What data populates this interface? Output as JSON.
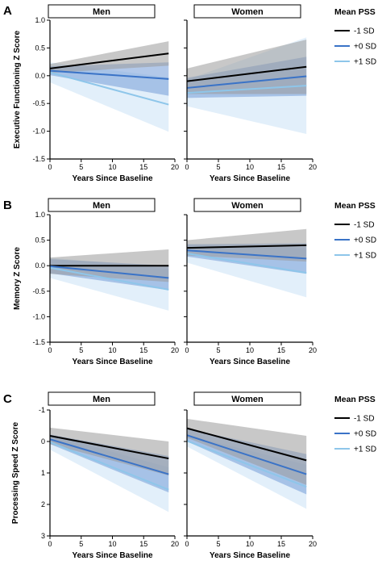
{
  "chart_data": [
    {
      "type": "line",
      "panel_letter": "A",
      "ylabel": "Executive Functioning Z Score",
      "xlabel": "Years Since Baseline",
      "xlim": [
        0,
        20
      ],
      "xticks": [
        0,
        5,
        10,
        15,
        20
      ],
      "ylim": [
        -1.5,
        1.0
      ],
      "yticks": [
        -1.5,
        -1.0,
        -0.5,
        0.0,
        0.5,
        1.0
      ],
      "yreversed": false,
      "grid": false,
      "legend_title": "Mean PSS",
      "legend_position": "right",
      "facets": [
        {
          "title": "Men",
          "series": [
            {
              "name": "-1 SD",
              "color": "#000000",
              "band_color": "#9a9a9a",
              "x": [
                0,
                19
              ],
              "y": [
                0.13,
                0.4
              ],
              "lower": [
                0.05,
                0.18
              ],
              "upper": [
                0.21,
                0.62
              ]
            },
            {
              "name": "+0 SD",
              "color": "#3a73c7",
              "band_color": "#7fa3da",
              "x": [
                0,
                19
              ],
              "y": [
                0.09,
                -0.06
              ],
              "lower": [
                0.01,
                -0.36
              ],
              "upper": [
                0.17,
                0.24
              ]
            },
            {
              "name": "+1 SD",
              "color": "#8ec6ea",
              "band_color": "#cfe5f6",
              "x": [
                0,
                19
              ],
              "y": [
                0.06,
                -0.52
              ],
              "lower": [
                -0.12,
                -1.01
              ],
              "upper": [
                0.24,
                -0.03
              ]
            }
          ]
        },
        {
          "title": "Women",
          "series": [
            {
              "name": "-1 SD",
              "color": "#000000",
              "band_color": "#9a9a9a",
              "x": [
                0,
                19
              ],
              "y": [
                -0.1,
                0.16
              ],
              "lower": [
                -0.33,
                -0.33
              ],
              "upper": [
                0.13,
                0.65
              ]
            },
            {
              "name": "+0 SD",
              "color": "#3a73c7",
              "band_color": "#7fa3da",
              "x": [
                0,
                19
              ],
              "y": [
                -0.22,
                -0.01
              ],
              "lower": [
                -0.4,
                -0.36
              ],
              "upper": [
                -0.04,
                0.34
              ]
            },
            {
              "name": "+1 SD",
              "color": "#8ec6ea",
              "band_color": "#cfe5f6",
              "x": [
                0,
                19
              ],
              "y": [
                -0.31,
                -0.18
              ],
              "lower": [
                -0.55,
                -1.05
              ],
              "upper": [
                -0.07,
                0.69
              ]
            }
          ]
        }
      ]
    },
    {
      "type": "line",
      "panel_letter": "B",
      "ylabel": "Memory Z Score",
      "xlabel": "Years Since Baseline",
      "xlim": [
        0,
        20
      ],
      "xticks": [
        0,
        5,
        10,
        15,
        20
      ],
      "ylim": [
        -1.5,
        1.0
      ],
      "yticks": [
        -1.5,
        -1.0,
        -0.5,
        0.0,
        0.5,
        1.0
      ],
      "yreversed": false,
      "grid": false,
      "legend_title": "Mean PSS",
      "legend_position": "right",
      "facets": [
        {
          "title": "Men",
          "series": [
            {
              "name": "-1 SD",
              "color": "#000000",
              "band_color": "#9a9a9a",
              "x": [
                0,
                19
              ],
              "y": [
                0.0,
                0.0
              ],
              "lower": [
                -0.16,
                -0.32
              ],
              "upper": [
                0.16,
                0.32
              ]
            },
            {
              "name": "+0 SD",
              "color": "#3a73c7",
              "band_color": "#7fa3da",
              "x": [
                0,
                19
              ],
              "y": [
                -0.01,
                -0.24
              ],
              "lower": [
                -0.15,
                -0.48
              ],
              "upper": [
                0.13,
                0.0
              ]
            },
            {
              "name": "+1 SD",
              "color": "#8ec6ea",
              "band_color": "#cfe5f6",
              "x": [
                0,
                19
              ],
              "y": [
                -0.04,
                -0.47
              ],
              "lower": [
                -0.24,
                -0.88
              ],
              "upper": [
                0.16,
                -0.06
              ]
            }
          ]
        },
        {
          "title": "Women",
          "series": [
            {
              "name": "-1 SD",
              "color": "#000000",
              "band_color": "#9a9a9a",
              "x": [
                0,
                19
              ],
              "y": [
                0.35,
                0.4
              ],
              "lower": [
                0.2,
                0.08
              ],
              "upper": [
                0.5,
                0.72
              ]
            },
            {
              "name": "+0 SD",
              "color": "#3a73c7",
              "band_color": "#7fa3da",
              "x": [
                0,
                19
              ],
              "y": [
                0.3,
                0.14
              ],
              "lower": [
                0.18,
                -0.16
              ],
              "upper": [
                0.42,
                0.44
              ]
            },
            {
              "name": "+1 SD",
              "color": "#8ec6ea",
              "band_color": "#cfe5f6",
              "x": [
                0,
                19
              ],
              "y": [
                0.24,
                -0.14
              ],
              "lower": [
                0.06,
                -0.62
              ],
              "upper": [
                0.42,
                0.34
              ]
            }
          ]
        }
      ]
    },
    {
      "type": "line",
      "panel_letter": "C",
      "ylabel": "Processing Speed Z Score",
      "xlabel": "Years Since Baseline",
      "xlim": [
        0,
        20
      ],
      "xticks": [
        0,
        5,
        10,
        15,
        20
      ],
      "ylim": [
        -1,
        3
      ],
      "yticks": [
        -1,
        0,
        1,
        2,
        3
      ],
      "yreversed": true,
      "grid": false,
      "legend_title": "Mean PSS",
      "legend_position": "right",
      "facets": [
        {
          "title": "Men",
          "series": [
            {
              "name": "-1 SD",
              "color": "#000000",
              "band_color": "#9a9a9a",
              "x": [
                0,
                19
              ],
              "y": [
                -0.18,
                0.54
              ],
              "lower": [
                -0.44,
                0.0
              ],
              "upper": [
                0.08,
                1.08
              ]
            },
            {
              "name": "+0 SD",
              "color": "#3a73c7",
              "band_color": "#7fa3da",
              "x": [
                0,
                19
              ],
              "y": [
                -0.07,
                1.04
              ],
              "lower": [
                -0.22,
                0.46
              ],
              "upper": [
                0.08,
                1.62
              ]
            },
            {
              "name": "+1 SD",
              "color": "#8ec6ea",
              "band_color": "#cfe5f6",
              "x": [
                0,
                19
              ],
              "y": [
                0.02,
                1.53
              ],
              "lower": [
                -0.22,
                0.82
              ],
              "upper": [
                0.26,
                2.24
              ]
            }
          ]
        },
        {
          "title": "Women",
          "series": [
            {
              "name": "-1 SD",
              "color": "#000000",
              "band_color": "#9a9a9a",
              "x": [
                0,
                19
              ],
              "y": [
                -0.42,
                0.6
              ],
              "lower": [
                -0.72,
                -0.18
              ],
              "upper": [
                -0.12,
                1.38
              ]
            },
            {
              "name": "+0 SD",
              "color": "#3a73c7",
              "band_color": "#7fa3da",
              "x": [
                0,
                19
              ],
              "y": [
                -0.2,
                1.04
              ],
              "lower": [
                -0.4,
                0.4
              ],
              "upper": [
                0.0,
                1.68
              ]
            },
            {
              "name": "+1 SD",
              "color": "#8ec6ea",
              "band_color": "#cfe5f6",
              "x": [
                0,
                19
              ],
              "y": [
                -0.02,
                1.44
              ],
              "lower": [
                -0.2,
                0.74
              ],
              "upper": [
                0.16,
                2.14
              ]
            }
          ]
        }
      ]
    }
  ]
}
